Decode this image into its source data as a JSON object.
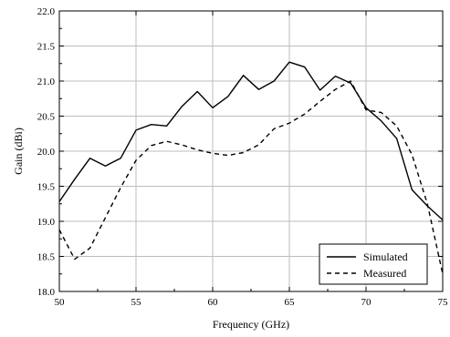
{
  "chart_data": {
    "type": "line",
    "xlabel": "Frequency (GHz)",
    "ylabel": "Gain (dBi)",
    "xlim": [
      50,
      75
    ],
    "ylim": [
      18.0,
      22.0
    ],
    "x_ticks": [
      50,
      55,
      60,
      65,
      70,
      75
    ],
    "y_ticks": [
      18.0,
      18.5,
      19.0,
      19.5,
      20.0,
      20.5,
      21.0,
      21.5,
      22.0
    ],
    "grid": true,
    "legend": "bottom-right",
    "series": [
      {
        "name": "Simulated",
        "style": "solid",
        "color": "#000000",
        "x": [
          50,
          51,
          52,
          53,
          54,
          55,
          56,
          57,
          58,
          59,
          60,
          61,
          62,
          63,
          64,
          65,
          66,
          67,
          68,
          69,
          70,
          71,
          72,
          73,
          74,
          75
        ],
        "y": [
          19.28,
          19.6,
          19.9,
          19.79,
          19.9,
          20.3,
          20.38,
          20.36,
          20.64,
          20.85,
          20.62,
          20.78,
          21.08,
          20.88,
          21.0,
          21.27,
          21.2,
          20.87,
          21.07,
          20.97,
          20.62,
          20.43,
          20.18,
          19.45,
          19.22,
          19.02
        ]
      },
      {
        "name": "Measured",
        "style": "dashed",
        "color": "#000000",
        "x": [
          50,
          51,
          52,
          53,
          54,
          55,
          56,
          57,
          58,
          59,
          60,
          61,
          62,
          63,
          64,
          65,
          66,
          67,
          68,
          69,
          70,
          71,
          72,
          73,
          74,
          75
        ],
        "y": [
          18.88,
          18.46,
          18.62,
          19.05,
          19.48,
          19.87,
          20.08,
          20.14,
          20.09,
          20.02,
          19.97,
          19.94,
          19.98,
          20.09,
          20.32,
          20.4,
          20.53,
          20.71,
          20.88,
          21.0,
          20.59,
          20.55,
          20.36,
          19.95,
          19.25,
          18.25
        ]
      }
    ]
  }
}
